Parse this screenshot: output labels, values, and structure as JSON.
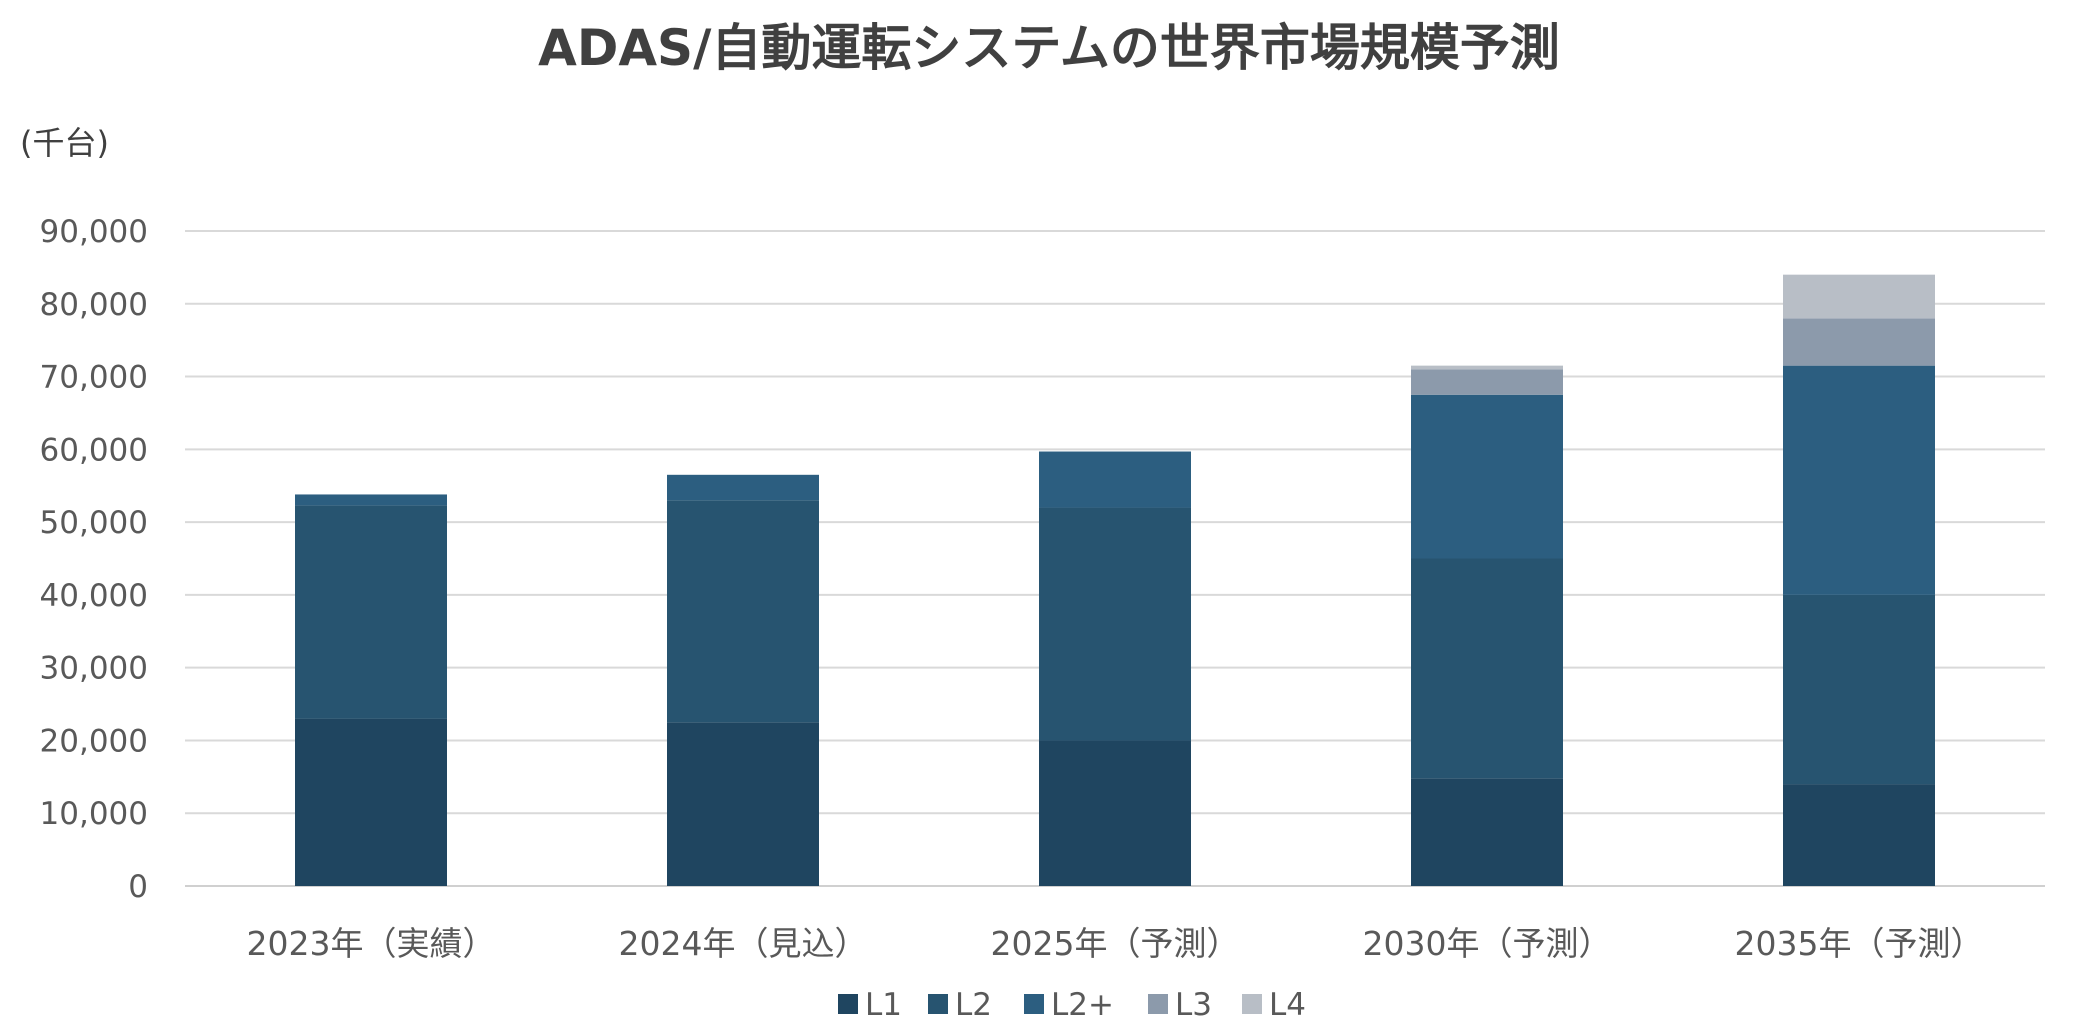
{
  "chart_data": {
    "type": "bar",
    "stacked": true,
    "title": "ADAS/自動運転システムの世界市場規模予測",
    "unit": "(千台)",
    "categories": [
      "2023年（実績）",
      "2024年（見込）",
      "2025年（予測）",
      "2030年（予測）",
      "2035年（予測）"
    ],
    "series": [
      {
        "name": "L1",
        "color": "#1f4560",
        "values": [
          23000,
          22500,
          20000,
          14800,
          14000
        ]
      },
      {
        "name": "L2",
        "color": "#275470",
        "values": [
          29300,
          30500,
          32000,
          30200,
          26000
        ]
      },
      {
        "name": "L2+",
        "color": "#2c5e80",
        "values": [
          1500,
          3500,
          7700,
          22500,
          31500
        ]
      },
      {
        "name": "L3",
        "color": "#8c9aab",
        "values": [
          0,
          0,
          0,
          3500,
          6500
        ]
      },
      {
        "name": "L4",
        "color": "#b8bec6",
        "values": [
          0,
          0,
          0,
          500,
          6000
        ]
      }
    ],
    "ylim": [
      0,
      90000
    ],
    "yticks": [
      0,
      10000,
      20000,
      30000,
      40000,
      50000,
      60000,
      70000,
      80000,
      90000
    ],
    "ytick_labels": [
      "0",
      "10,000",
      "20,000",
      "30,000",
      "40,000",
      "50,000",
      "60,000",
      "70,000",
      "80,000",
      "90,000"
    ],
    "grid": true,
    "legend": "bottom"
  }
}
